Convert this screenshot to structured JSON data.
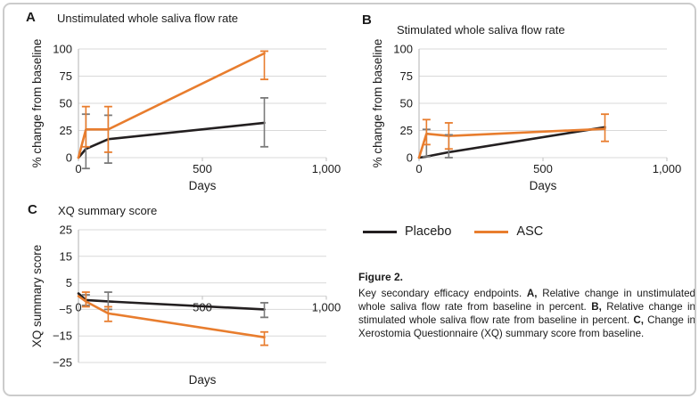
{
  "figure": {
    "legend": [
      {
        "label": "Placebo",
        "color": "#231f20"
      },
      {
        "label": "ASC",
        "color": "#e87d2e"
      }
    ],
    "caption_title": "Figure 2.",
    "caption_segments": [
      {
        "text": "Key secondary efficacy endpoints. ",
        "bold": false
      },
      {
        "text": "A,",
        "bold": true
      },
      {
        "text": " Relative change in unstimulated whole saliva flow rate from baseline in percent. ",
        "bold": false
      },
      {
        "text": "B,",
        "bold": true
      },
      {
        "text": " Relative change in stimulated whole saliva flow rate from baseline in percent. ",
        "bold": false
      },
      {
        "text": "C,",
        "bold": true
      },
      {
        "text": " Change in Xerostomia Questionnaire (XQ) summary score from baseline.",
        "bold": false
      }
    ]
  },
  "theme": {
    "gridline": "#d9d9d9",
    "axis": "#bfbfbf",
    "tick_text": "#1c1c1c",
    "border": "#cccccc"
  },
  "chart_data": [
    {
      "panel_label": "A",
      "type": "line",
      "title": "Unstimulated whole saliva flow rate",
      "xlabel": "Days",
      "ylabel": "% change from baseline",
      "xlim": [
        0,
        1000
      ],
      "ylim": [
        0,
        100
      ],
      "xticks": [
        0,
        500,
        1000
      ],
      "xtick_labels": [
        "0",
        "500",
        "1,000"
      ],
      "yticks": [
        0,
        25,
        50,
        75,
        100
      ],
      "x": [
        0,
        30,
        120,
        750
      ],
      "series": [
        {
          "name": "Placebo",
          "color": "#231f20",
          "error_color": "#7a7a7a",
          "values": [
            0,
            8,
            17,
            32
          ],
          "errors": [
            null,
            [
              -10,
              40
            ],
            [
              -5,
              39
            ],
            [
              10,
              55
            ]
          ]
        },
        {
          "name": "ASC",
          "color": "#e87d2e",
          "error_color": "#e87d2e",
          "values": [
            0,
            26,
            26,
            96
          ],
          "errors": [
            null,
            [
              10,
              47
            ],
            [
              5,
              47
            ],
            [
              72,
              98
            ]
          ]
        }
      ]
    },
    {
      "panel_label": "B",
      "type": "line",
      "title": "Stimulated whole saliva flow rate",
      "xlabel": "Days",
      "ylabel": "% change from baseline",
      "xlim": [
        0,
        1000
      ],
      "ylim": [
        0,
        100
      ],
      "xticks": [
        0,
        500,
        1000
      ],
      "xtick_labels": [
        "0",
        "500",
        "1,000"
      ],
      "yticks": [
        0,
        25,
        50,
        75,
        100
      ],
      "x": [
        0,
        30,
        120,
        750
      ],
      "series": [
        {
          "name": "Placebo",
          "color": "#231f20",
          "error_color": "#7a7a7a",
          "values": [
            0,
            1,
            5,
            28
          ],
          "errors": [
            null,
            [
              1,
              26
            ],
            [
              0,
              21
            ],
            null
          ]
        },
        {
          "name": "ASC",
          "color": "#e87d2e",
          "error_color": "#e87d2e",
          "values": [
            0,
            22,
            20,
            26.5
          ],
          "errors": [
            null,
            [
              12,
              35
            ],
            [
              8,
              32
            ],
            [
              15,
              40
            ]
          ]
        }
      ]
    },
    {
      "panel_label": "C",
      "type": "line",
      "title": "XQ summary score",
      "xlabel": "Days",
      "ylabel": "XQ summary score",
      "xlim": [
        0,
        1000
      ],
      "ylim": [
        -25,
        25
      ],
      "xticks": [
        0,
        500,
        1000
      ],
      "xtick_labels": [
        "0",
        "500",
        "1,000"
      ],
      "yticks": [
        -25,
        -15,
        -5,
        5,
        15,
        25
      ],
      "zero_line": true,
      "xtick_labels_at_zero": true,
      "x": [
        0,
        30,
        120,
        750
      ],
      "series": [
        {
          "name": "Placebo",
          "color": "#231f20",
          "error_color": "#7a7a7a",
          "values": [
            1,
            -1.5,
            -2,
            -5
          ],
          "errors": [
            null,
            [
              -3.5,
              0.5
            ],
            [
              -5,
              1.5
            ],
            [
              -8,
              -2.5
            ]
          ]
        },
        {
          "name": "ASC",
          "color": "#e87d2e",
          "error_color": "#e87d2e",
          "values": [
            0,
            -2,
            -6.5,
            -15.5
          ],
          "errors": [
            null,
            [
              -4,
              1.5
            ],
            [
              -9.5,
              -4
            ],
            [
              -18.5,
              -13.5
            ]
          ]
        }
      ]
    }
  ]
}
